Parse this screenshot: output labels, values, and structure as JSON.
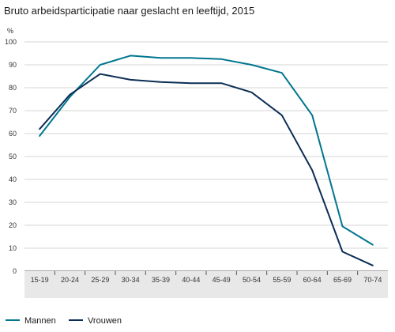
{
  "chart_data": {
    "type": "line",
    "title": "Bruto arbeidsparticipatie naar geslacht en leeftijd, 2015",
    "ylabel": "%",
    "xlabel": "",
    "categories": [
      "15-19",
      "20-24",
      "25-29",
      "30-34",
      "35-39",
      "40-44",
      "45-49",
      "50-54",
      "55-59",
      "60-64",
      "65-69",
      "70-74"
    ],
    "series": [
      {
        "name": "Mannen",
        "color": "#00768e",
        "values": [
          59,
          76,
          90,
          94,
          93,
          93,
          92.5,
          90,
          86.5,
          68,
          19.5,
          11.5
        ]
      },
      {
        "name": "Vrouwen",
        "color": "#0b2d55",
        "values": [
          62,
          77,
          86,
          83.5,
          82.5,
          82,
          82,
          78,
          68,
          44,
          8.5,
          2.5
        ]
      }
    ],
    "ylim": [
      0,
      100
    ],
    "yticks": [
      0,
      10,
      20,
      30,
      40,
      50,
      60,
      70,
      80,
      90,
      100
    ],
    "grid": true,
    "legend_position": "bottom-left"
  }
}
